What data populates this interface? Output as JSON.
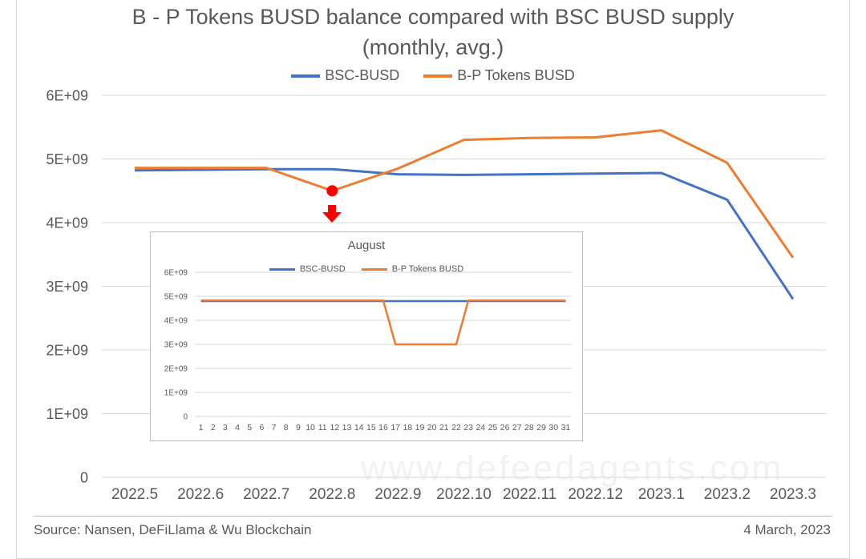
{
  "chart_data": [
    {
      "type": "line",
      "title_line1": "B - P Tokens BUSD balance compared with BSC BUSD supply",
      "title_line2": "(monthly, avg.)",
      "categories": [
        "2022.5",
        "2022.6",
        "2022.7",
        "2022.8",
        "2022.9",
        "2022.10",
        "2022.11",
        "2022.12",
        "2023.1",
        "2023.2",
        "2023.3"
      ],
      "series": [
        {
          "name": "BSC-BUSD",
          "color": "#4472C4",
          "values": [
            4820000000.0,
            4830000000.0,
            4840000000.0,
            4840000000.0,
            4760000000.0,
            4750000000.0,
            4760000000.0,
            4770000000.0,
            4780000000.0,
            4360000000.0,
            2800000000.0
          ]
        },
        {
          "name": "B-P Tokens BUSD",
          "color": "#ED7D31",
          "values": [
            4860000000.0,
            4860000000.0,
            4860000000.0,
            4500000000.0,
            4850000000.0,
            5300000000.0,
            5330000000.0,
            5340000000.0,
            5450000000.0,
            4940000000.0,
            3450000000.0
          ]
        }
      ],
      "y_ticks": [
        "0",
        "1E+09",
        "2E+09",
        "3E+09",
        "4E+09",
        "5E+09",
        "6E+09"
      ],
      "ylim": [
        0,
        6000000000.0
      ],
      "grid": true,
      "legend_position": "top",
      "highlight": {
        "category": "2022.8",
        "series": "B-P Tokens BUSD",
        "marker_color": "#FF0000"
      }
    },
    {
      "type": "line",
      "title": "August",
      "categories": [
        "1",
        "2",
        "3",
        "4",
        "5",
        "6",
        "7",
        "8",
        "9",
        "10",
        "11",
        "12",
        "13",
        "14",
        "15",
        "16",
        "17",
        "18",
        "19",
        "20",
        "21",
        "22",
        "23",
        "24",
        "25",
        "26",
        "27",
        "28",
        "29",
        "30",
        "31"
      ],
      "series": [
        {
          "name": "BSC-BUSD",
          "color": "#4472C4",
          "values": [
            4800000000.0,
            4800000000.0,
            4800000000.0,
            4800000000.0,
            4800000000.0,
            4800000000.0,
            4800000000.0,
            4800000000.0,
            4800000000.0,
            4800000000.0,
            4800000000.0,
            4800000000.0,
            4800000000.0,
            4800000000.0,
            4800000000.0,
            4800000000.0,
            4800000000.0,
            4800000000.0,
            4800000000.0,
            4800000000.0,
            4800000000.0,
            4800000000.0,
            4800000000.0,
            4800000000.0,
            4800000000.0,
            4800000000.0,
            4800000000.0,
            4800000000.0,
            4800000000.0,
            4800000000.0,
            4800000000.0
          ]
        },
        {
          "name": "B-P Tokens BUSD",
          "color": "#ED7D31",
          "values": [
            4830000000.0,
            4830000000.0,
            4830000000.0,
            4830000000.0,
            4830000000.0,
            4830000000.0,
            4830000000.0,
            4830000000.0,
            4830000000.0,
            4830000000.0,
            4830000000.0,
            4830000000.0,
            4830000000.0,
            4830000000.0,
            4830000000.0,
            4830000000.0,
            3000000000.0,
            3000000000.0,
            3000000000.0,
            3000000000.0,
            3000000000.0,
            3000000000.0,
            4830000000.0,
            4830000000.0,
            4830000000.0,
            4830000000.0,
            4830000000.0,
            4830000000.0,
            4830000000.0,
            4830000000.0,
            4830000000.0
          ]
        }
      ],
      "y_ticks": [
        "0",
        "1E+09",
        "2E+09",
        "3E+09",
        "4E+09",
        "5E+09",
        "6E+09"
      ],
      "ylim": [
        0,
        6000000000.0
      ],
      "grid": true,
      "legend_position": "top"
    }
  ],
  "footer": {
    "source": "Source: Nansen, DeFiLlama & Wu Blockchain",
    "date": "4 March, 2023"
  },
  "watermark_text": "www.defeedagents.com"
}
